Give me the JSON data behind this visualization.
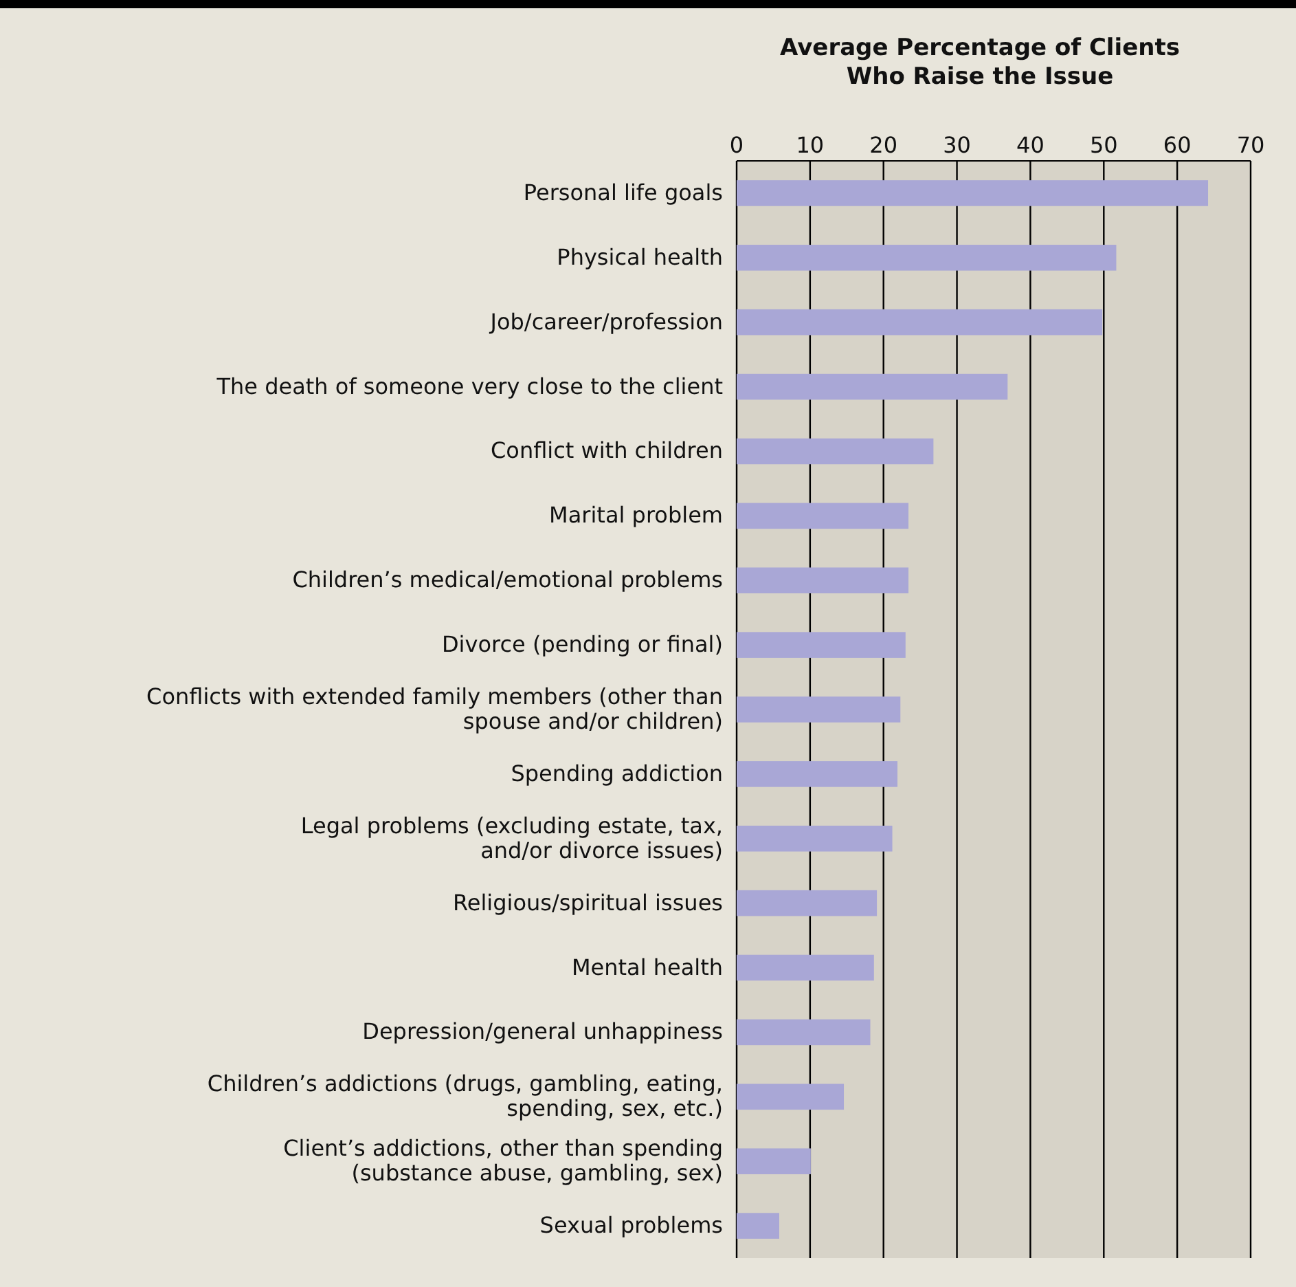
{
  "chart_data": {
    "type": "bar",
    "orientation": "horizontal",
    "title": "Average Percentage of Clients\nWho Raise the Issue",
    "categories": [
      "Personal life goals",
      "Physical health",
      "Job/career/profession",
      "The death of someone very close to the client",
      "Conflict with children",
      "Marital problem",
      "Children’s medical/emotional problems",
      "Divorce (pending or final)",
      "Conflicts with extended family members (other than\nspouse and/or children)",
      "Spending addiction",
      "Legal problems (excluding estate, tax,\nand/or divorce issues)",
      "Religious/spiritual issues",
      "Mental health",
      "Depression/general unhappiness",
      "Children’s addictions (drugs, gambling, eating,\nspending, sex, etc.)",
      "Client’s addictions, other than spending\n(substance abuse, gambling, sex)",
      "Sexual problems"
    ],
    "values": [
      64.2,
      51.7,
      49.8,
      36.9,
      26.8,
      23.4,
      23.4,
      23.0,
      22.3,
      21.9,
      21.2,
      19.1,
      18.7,
      18.2,
      14.6,
      10.1,
      5.8
    ],
    "color": "#a9a7d6",
    "xlim": [
      0,
      70
    ],
    "xticks": [
      0,
      10,
      20,
      30,
      40,
      50,
      60,
      70
    ],
    "grid": "x"
  }
}
